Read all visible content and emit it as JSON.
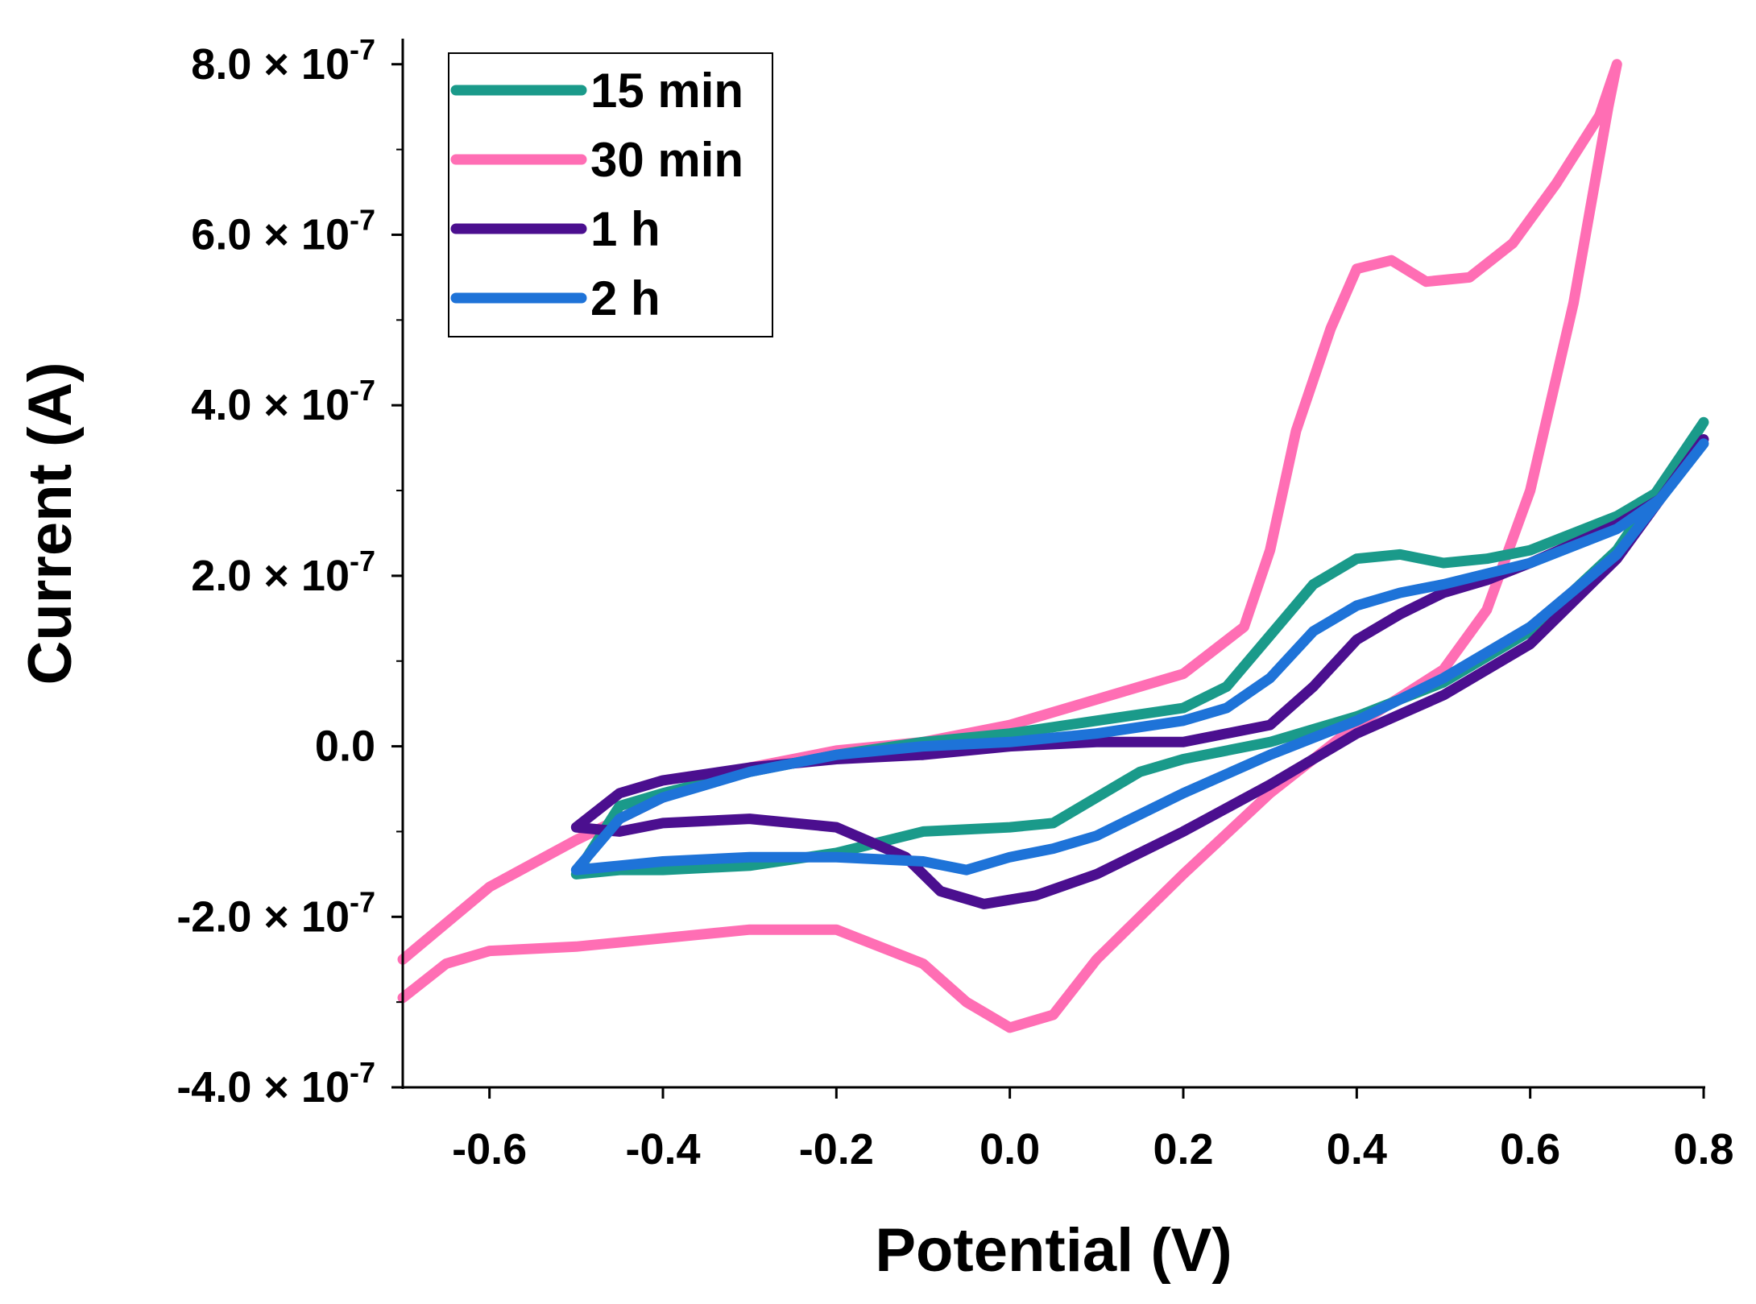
{
  "chart_data": {
    "type": "line",
    "xlabel": "Potential (V)",
    "ylabel": "Current (A)",
    "xlim": [
      -0.7,
      0.8
    ],
    "ylim": [
      -4e-07,
      8.3e-07
    ],
    "x_ticks": [
      -0.6,
      -0.4,
      -0.2,
      0.0,
      0.2,
      0.4,
      0.6,
      0.8
    ],
    "x_tick_labels": [
      "-0.6",
      "-0.4",
      "-0.2",
      "0.0",
      "0.2",
      "0.4",
      "0.6",
      "0.8"
    ],
    "y_ticks": [
      8e-07,
      6e-07,
      4e-07,
      2e-07,
      0.0,
      -2e-07,
      -4e-07
    ],
    "y_tick_labels": [
      {
        "mantissa": "8.0 × 10",
        "exp": "-7"
      },
      {
        "mantissa": "6.0 × 10",
        "exp": "-7"
      },
      {
        "mantissa": "4.0 × 10",
        "exp": "-7"
      },
      {
        "mantissa": "2.0 × 10",
        "exp": "-7"
      },
      {
        "mantissa": "0.0",
        "exp": ""
      },
      {
        "mantissa": "-2.0 × 10",
        "exp": "-7"
      },
      {
        "mantissa": "-4.0 × 10",
        "exp": "-7"
      }
    ],
    "grid": false,
    "legend_position": "top-left",
    "series": [
      {
        "name": "15 min",
        "color": "#1a9a8a",
        "points": [
          [
            -0.5,
            -1.5e-07
          ],
          [
            -0.45,
            -1.45e-07
          ],
          [
            -0.4,
            -1.45e-07
          ],
          [
            -0.3,
            -1.4e-07
          ],
          [
            -0.2,
            -1.25e-07
          ],
          [
            -0.1,
            -1e-07
          ],
          [
            0.0,
            -9.5e-08
          ],
          [
            0.05,
            -9e-08
          ],
          [
            0.1,
            -6e-08
          ],
          [
            0.15,
            -3e-08
          ],
          [
            0.2,
            -1.5e-08
          ],
          [
            0.3,
            5e-09
          ],
          [
            0.4,
            3.5e-08
          ],
          [
            0.5,
            7.5e-08
          ],
          [
            0.6,
            1.35e-07
          ],
          [
            0.7,
            2.3e-07
          ],
          [
            0.8,
            3.8e-07
          ],
          [
            0.75,
            3e-07
          ],
          [
            0.7,
            2.7e-07
          ],
          [
            0.6,
            2.3e-07
          ],
          [
            0.55,
            2.2e-07
          ],
          [
            0.5,
            2.15e-07
          ],
          [
            0.45,
            2.25e-07
          ],
          [
            0.4,
            2.2e-07
          ],
          [
            0.35,
            1.9e-07
          ],
          [
            0.3,
            1.3e-07
          ],
          [
            0.25,
            7e-08
          ],
          [
            0.2,
            4.5e-08
          ],
          [
            0.1,
            3e-08
          ],
          [
            0.0,
            1.5e-08
          ],
          [
            -0.1,
            5e-09
          ],
          [
            -0.2,
            -1e-08
          ],
          [
            -0.3,
            -3e-08
          ],
          [
            -0.4,
            -5.5e-08
          ],
          [
            -0.45,
            -7e-08
          ],
          [
            -0.5,
            -1.5e-07
          ]
        ]
      },
      {
        "name": "30 min",
        "color": "#ff6eb4",
        "points": [
          [
            -0.7,
            -2.95e-07
          ],
          [
            -0.65,
            -2.55e-07
          ],
          [
            -0.6,
            -2.4e-07
          ],
          [
            -0.5,
            -2.35e-07
          ],
          [
            -0.4,
            -2.25e-07
          ],
          [
            -0.3,
            -2.15e-07
          ],
          [
            -0.2,
            -2.15e-07
          ],
          [
            -0.1,
            -2.55e-07
          ],
          [
            -0.05,
            -3e-07
          ],
          [
            0.0,
            -3.3e-07
          ],
          [
            0.05,
            -3.15e-07
          ],
          [
            0.1,
            -2.5e-07
          ],
          [
            0.2,
            -1.5e-07
          ],
          [
            0.3,
            -5.5e-08
          ],
          [
            0.4,
            2.5e-08
          ],
          [
            0.5,
            9e-08
          ],
          [
            0.55,
            1.6e-07
          ],
          [
            0.6,
            3e-07
          ],
          [
            0.65,
            5.2e-07
          ],
          [
            0.69,
            7.5e-07
          ],
          [
            0.7,
            8e-07
          ],
          [
            0.68,
            7.4e-07
          ],
          [
            0.63,
            6.6e-07
          ],
          [
            0.58,
            5.9e-07
          ],
          [
            0.53,
            5.5e-07
          ],
          [
            0.48,
            5.45e-07
          ],
          [
            0.44,
            5.7e-07
          ],
          [
            0.4,
            5.6e-07
          ],
          [
            0.37,
            4.9e-07
          ],
          [
            0.33,
            3.7e-07
          ],
          [
            0.3,
            2.3e-07
          ],
          [
            0.27,
            1.4e-07
          ],
          [
            0.2,
            8.5e-08
          ],
          [
            0.1,
            5.5e-08
          ],
          [
            0.0,
            2.5e-08
          ],
          [
            -0.1,
            5e-09
          ],
          [
            -0.2,
            -5e-09
          ],
          [
            -0.3,
            -2.5e-08
          ],
          [
            -0.4,
            -6e-08
          ],
          [
            -0.5,
            -1.1e-07
          ],
          [
            -0.6,
            -1.65e-07
          ],
          [
            -0.7,
            -2.5e-07
          ]
        ]
      },
      {
        "name": "1 h",
        "color": "#4b0f8f",
        "points": [
          [
            -0.5,
            -9.5e-08
          ],
          [
            -0.45,
            -1e-07
          ],
          [
            -0.4,
            -9e-08
          ],
          [
            -0.3,
            -8.5e-08
          ],
          [
            -0.2,
            -9.5e-08
          ],
          [
            -0.12,
            -1.3e-07
          ],
          [
            -0.08,
            -1.7e-07
          ],
          [
            -0.03,
            -1.85e-07
          ],
          [
            0.03,
            -1.75e-07
          ],
          [
            0.1,
            -1.5e-07
          ],
          [
            0.2,
            -1e-07
          ],
          [
            0.3,
            -4.5e-08
          ],
          [
            0.4,
            1.5e-08
          ],
          [
            0.5,
            6e-08
          ],
          [
            0.6,
            1.2e-07
          ],
          [
            0.7,
            2.2e-07
          ],
          [
            0.8,
            3.6e-07
          ],
          [
            0.75,
            2.9e-07
          ],
          [
            0.7,
            2.6e-07
          ],
          [
            0.6,
            2.15e-07
          ],
          [
            0.55,
            1.95e-07
          ],
          [
            0.5,
            1.8e-07
          ],
          [
            0.45,
            1.55e-07
          ],
          [
            0.4,
            1.25e-07
          ],
          [
            0.35,
            7e-08
          ],
          [
            0.3,
            2.5e-08
          ],
          [
            0.2,
            5e-09
          ],
          [
            0.1,
            5e-09
          ],
          [
            0.0,
            0.0
          ],
          [
            -0.1,
            -1e-08
          ],
          [
            -0.2,
            -1.5e-08
          ],
          [
            -0.3,
            -2.5e-08
          ],
          [
            -0.4,
            -4e-08
          ],
          [
            -0.45,
            -5.5e-08
          ],
          [
            -0.5,
            -9.5e-08
          ]
        ]
      },
      {
        "name": "2 h",
        "color": "#1e73d8",
        "points": [
          [
            -0.5,
            -1.45e-07
          ],
          [
            -0.45,
            -1.4e-07
          ],
          [
            -0.4,
            -1.35e-07
          ],
          [
            -0.3,
            -1.3e-07
          ],
          [
            -0.2,
            -1.3e-07
          ],
          [
            -0.1,
            -1.35e-07
          ],
          [
            -0.05,
            -1.45e-07
          ],
          [
            0.0,
            -1.3e-07
          ],
          [
            0.05,
            -1.2e-07
          ],
          [
            0.1,
            -1.05e-07
          ],
          [
            0.2,
            -5.5e-08
          ],
          [
            0.3,
            -1e-08
          ],
          [
            0.4,
            3e-08
          ],
          [
            0.5,
            8e-08
          ],
          [
            0.6,
            1.4e-07
          ],
          [
            0.7,
            2.25e-07
          ],
          [
            0.8,
            3.55e-07
          ],
          [
            0.75,
            2.9e-07
          ],
          [
            0.7,
            2.55e-07
          ],
          [
            0.6,
            2.15e-07
          ],
          [
            0.5,
            1.9e-07
          ],
          [
            0.45,
            1.8e-07
          ],
          [
            0.4,
            1.65e-07
          ],
          [
            0.35,
            1.35e-07
          ],
          [
            0.3,
            8e-08
          ],
          [
            0.25,
            4.5e-08
          ],
          [
            0.2,
            3e-08
          ],
          [
            0.1,
            1.5e-08
          ],
          [
            0.0,
            5e-09
          ],
          [
            -0.1,
            0.0
          ],
          [
            -0.2,
            -1e-08
          ],
          [
            -0.3,
            -3e-08
          ],
          [
            -0.4,
            -6e-08
          ],
          [
            -0.45,
            -8.5e-08
          ],
          [
            -0.5,
            -1.45e-07
          ]
        ]
      }
    ]
  }
}
